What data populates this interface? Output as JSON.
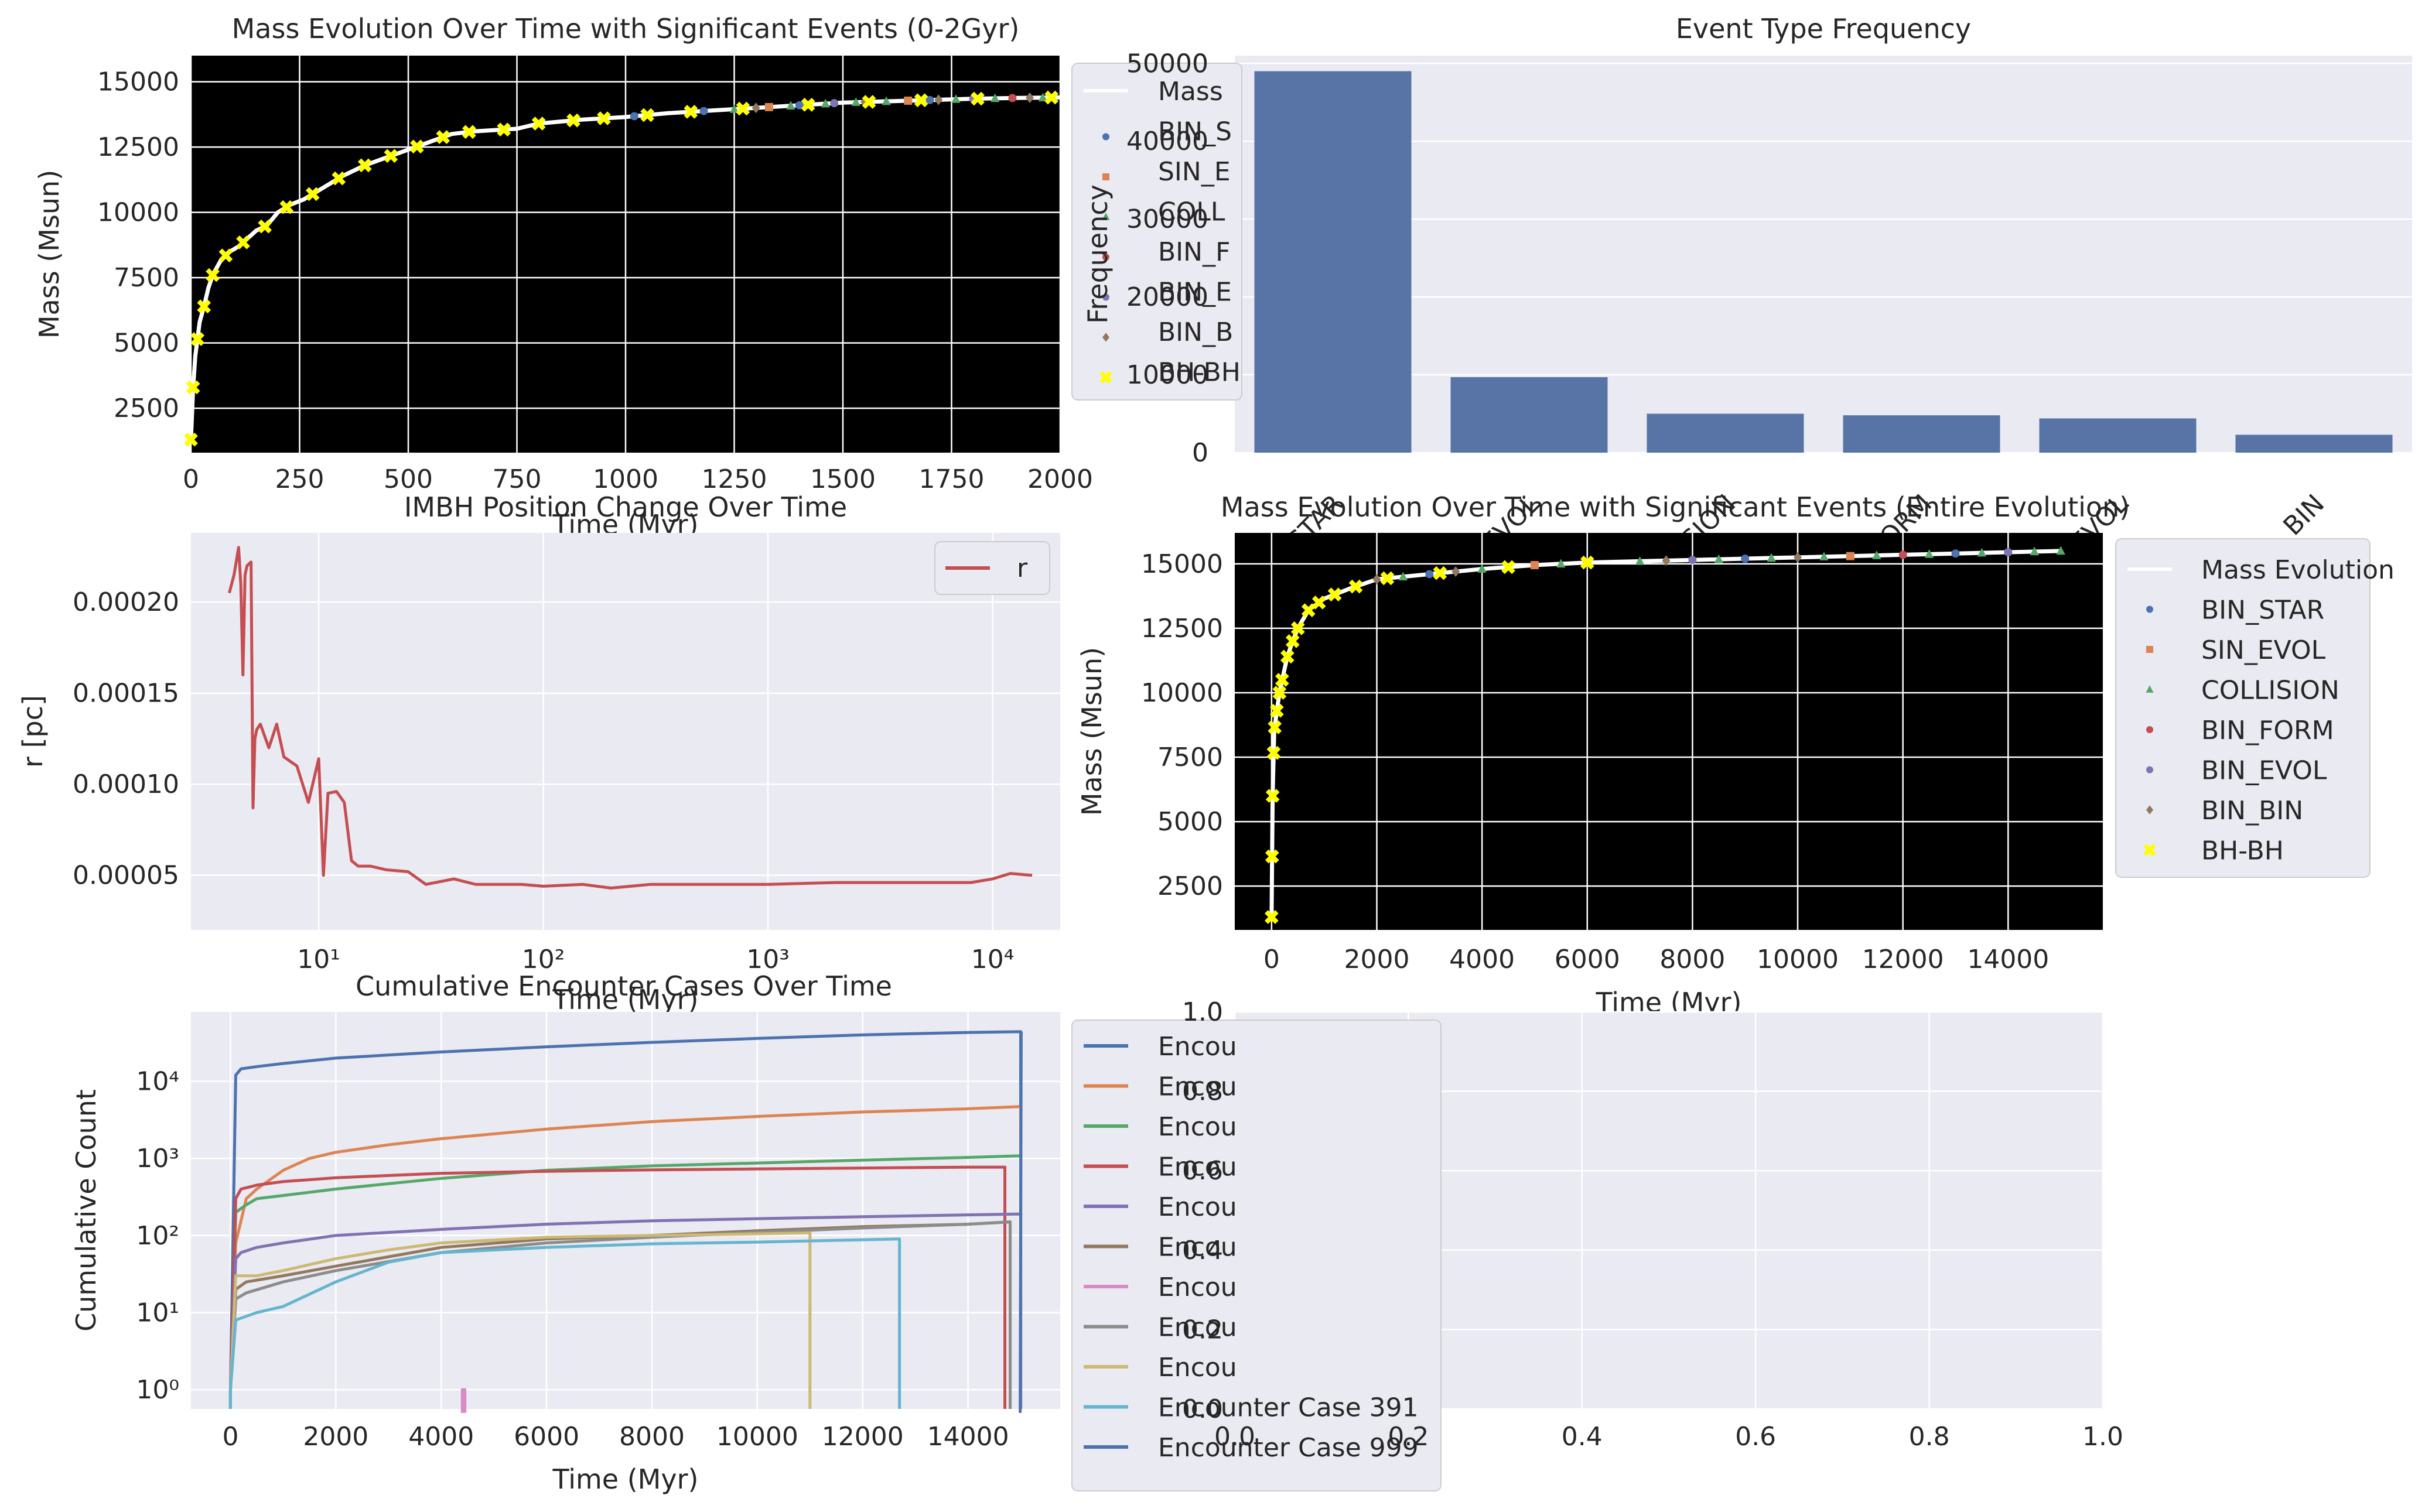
{
  "chart_data": [
    {
      "type": "line",
      "title": "Mass Evolution Over Time with Significant Events (0-2Gyr)",
      "xlabel": "Time (Myr)",
      "ylabel": "Mass (Msun)",
      "xlim": [
        0,
        2000
      ],
      "ylim": [
        800,
        16000
      ],
      "xticks": [
        0,
        250,
        500,
        750,
        1000,
        1250,
        1500,
        1750,
        2000
      ],
      "yticks": [
        2500,
        5000,
        7500,
        10000,
        12500,
        15000
      ],
      "background": "#000000",
      "grid": true,
      "series": [
        {
          "name": "Mass Evolution",
          "x": [
            0,
            5,
            10,
            20,
            30,
            40,
            50,
            70,
            90,
            110,
            130,
            150,
            175,
            200,
            230,
            260,
            300,
            350,
            400,
            450,
            500,
            550,
            600,
            650,
            700,
            750,
            800,
            900,
            1000,
            1100,
            1200,
            1300,
            1400,
            1500,
            1600,
            1700,
            1800,
            1900,
            2000
          ],
          "y": [
            1300,
            3300,
            4500,
            5800,
            6400,
            7100,
            7600,
            8200,
            8500,
            8700,
            9000,
            9300,
            9500,
            10000,
            10300,
            10500,
            10900,
            11400,
            11800,
            12100,
            12400,
            12700,
            13000,
            13100,
            13150,
            13200,
            13400,
            13550,
            13650,
            13800,
            13900,
            14000,
            14100,
            14200,
            14250,
            14300,
            14350,
            14380,
            14400
          ]
        }
      ],
      "event_markers": [
        {
          "name": "BIN_STAR",
          "x": [
            1020,
            1180,
            1400,
            1700
          ]
        },
        {
          "name": "SIN_EVOL",
          "x": [
            1330,
            1650
          ]
        },
        {
          "name": "COLLISION",
          "x": [
            1250,
            1380,
            1460,
            1530,
            1600,
            1760,
            1850,
            1960
          ]
        },
        {
          "name": "BIN_FORM",
          "x": [
            1420,
            1890
          ]
        },
        {
          "name": "BIN_EVOL",
          "x": [
            1480,
            1800
          ]
        },
        {
          "name": "BIN_BIN",
          "x": [
            1300,
            1550,
            1720,
            1930
          ]
        },
        {
          "name": "BH-BH",
          "x": [
            0,
            5,
            15,
            30,
            50,
            80,
            120,
            170,
            220,
            280,
            340,
            400,
            460,
            520,
            580,
            640,
            720,
            800,
            880,
            950,
            1050,
            1150,
            1270,
            1420,
            1560,
            1680,
            1810,
            1980
          ]
        }
      ],
      "legend": {
        "placement": "right",
        "entries": [
          "Mass Evolution",
          "BIN_STAR",
          "SIN_EVOL",
          "COLLISION",
          "BIN_FORM",
          "BIN_EVOL",
          "BIN_BIN",
          "BH-BH"
        ],
        "visible_labels": [
          "Mass",
          "BIN_S",
          "SIN_E",
          "COLL",
          "BIN_F",
          "BIN_E",
          "BIN_B",
          "BH-BH"
        ]
      }
    },
    {
      "type": "bar",
      "title": "Event Type Frequency",
      "xlabel": "",
      "ylabel": "Frequency",
      "ylim": [
        0,
        51000
      ],
      "yticks": [
        0,
        10000,
        20000,
        30000,
        40000,
        50000
      ],
      "categories": [
        "BIN_STAR",
        "SIN_EVOL",
        "COLLISION",
        "BIN_FORM",
        "BIN_EVOL",
        "BIN_BIN"
      ],
      "visible_tick_labels": [
        "STAR",
        "_EVOL",
        "LISION",
        "_FORM",
        "_EVOL",
        "_BIN"
      ],
      "values": [
        49000,
        9700,
        5000,
        4800,
        4400,
        2300
      ],
      "color": "#5874a6"
    },
    {
      "type": "line",
      "title": "IMBH Position Change Over Time",
      "xlabel": "Time (Myr)",
      "ylabel": "r [pc]",
      "xscale": "log",
      "xlim": [
        2.7,
        20000
      ],
      "ylim": [
        2e-05,
        0.000238
      ],
      "xticks": [
        "10¹",
        "10²",
        "10³",
        "10⁴"
      ],
      "yticks": [
        5e-05,
        0.0001,
        0.00015,
        0.0002
      ],
      "series": [
        {
          "name": "r",
          "x": [
            4.0,
            4.2,
            4.4,
            4.5,
            4.6,
            4.7,
            4.8,
            5.0,
            5.1,
            5.2,
            5.3,
            5.5,
            6.0,
            6.5,
            7.0,
            8.0,
            9.0,
            10.0,
            10.5,
            11.0,
            12.0,
            13.0,
            14.0,
            15.0,
            17.0,
            20.0,
            25.0,
            30.0,
            40.0,
            50.0,
            60.0,
            80.0,
            100.0,
            150.0,
            200.0,
            300.0,
            500.0,
            1000.0,
            2000.0,
            5000.0,
            8000.0,
            10000.0,
            12000.0,
            15000.0
          ],
          "y": [
            0.000205,
            0.000215,
            0.00023,
            0.00021,
            0.00016,
            0.000215,
            0.00022,
            0.000222,
            8.7e-05,
            0.000125,
            0.00013,
            0.000133,
            0.00012,
            0.000133,
            0.000115,
            0.00011,
            9e-05,
            0.000114,
            5e-05,
            9.5e-05,
            9.6e-05,
            9e-05,
            5.8e-05,
            5.5e-05,
            5.5e-05,
            5.3e-05,
            5.2e-05,
            4.5e-05,
            4.8e-05,
            4.5e-05,
            4.5e-05,
            4.5e-05,
            4.4e-05,
            4.5e-05,
            4.3e-05,
            4.5e-05,
            4.5e-05,
            4.5e-05,
            4.6e-05,
            4.6e-05,
            4.6e-05,
            4.8e-05,
            5.1e-05,
            5e-05
          ]
        }
      ],
      "color": "#c44e52",
      "legend": {
        "placement": "upper-right",
        "entries": [
          "r"
        ]
      }
    },
    {
      "type": "line",
      "title": "Mass Evolution Over Time with Significant Events (Entire Evolution)",
      "xlabel": "Time (Myr)",
      "ylabel": "Mass (Msun)",
      "xlim": [
        -700,
        15800
      ],
      "ylim": [
        800,
        16200
      ],
      "xticks": [
        0,
        2000,
        4000,
        6000,
        8000,
        10000,
        12000,
        14000
      ],
      "yticks": [
        2500,
        5000,
        7500,
        10000,
        12500,
        15000
      ],
      "background": "#000000",
      "grid": true,
      "series": [
        {
          "name": "Mass Evolution",
          "x": [
            0,
            20,
            50,
            100,
            150,
            200,
            300,
            400,
            500,
            700,
            1000,
            1500,
            2000,
            3000,
            4000,
            5000,
            6000,
            7000,
            8000,
            9000,
            10000,
            11000,
            12000,
            13000,
            14000,
            15000
          ],
          "y": [
            1300,
            6000,
            8500,
            9300,
            10000,
            10500,
            11400,
            12000,
            12500,
            13200,
            13650,
            14050,
            14400,
            14600,
            14800,
            14950,
            15050,
            15100,
            15150,
            15200,
            15250,
            15300,
            15350,
            15400,
            15450,
            15500
          ]
        }
      ],
      "event_markers": [
        {
          "name": "BIN_STAR",
          "x": [
            3000,
            9000,
            13000
          ]
        },
        {
          "name": "SIN_EVOL",
          "x": [
            5000,
            11000
          ]
        },
        {
          "name": "COLLISION",
          "x": [
            2500,
            4000,
            5500,
            7000,
            8500,
            9500,
            10500,
            11500,
            12500,
            13500,
            14500,
            15000
          ]
        },
        {
          "name": "BIN_FORM",
          "x": [
            6000,
            12000
          ]
        },
        {
          "name": "BIN_EVOL",
          "x": [
            8000,
            14000
          ]
        },
        {
          "name": "BIN_BIN",
          "x": [
            2000,
            3500,
            7500,
            10000
          ]
        },
        {
          "name": "BH-BH",
          "x": [
            0,
            10,
            20,
            40,
            60,
            100,
            150,
            200,
            300,
            400,
            500,
            700,
            900,
            1200,
            1600,
            2200,
            3200,
            4500,
            6000
          ]
        }
      ],
      "legend": {
        "placement": "right",
        "entries": [
          "Mass Evolution",
          "BIN_STAR",
          "SIN_EVOL",
          "COLLISION",
          "BIN_FORM",
          "BIN_EVOL",
          "BIN_BIN",
          "BH-BH"
        ]
      }
    },
    {
      "type": "line",
      "title": "Cumulative Encounter Cases Over Time",
      "xlabel": "Time (Myr)",
      "ylabel": "Cumulative Count",
      "yscale": "log",
      "xlim": [
        -750,
        15750
      ],
      "ylim_log10": [
        -0.25,
        4.9
      ],
      "xticks": [
        0,
        2000,
        4000,
        6000,
        8000,
        10000,
        12000,
        14000
      ],
      "yticks": [
        "10⁰",
        "10¹",
        "10²",
        "10³",
        "10⁴"
      ],
      "legend": {
        "placement": "right",
        "entries": [
          "Encou",
          "Encou",
          "Encou",
          "Encou",
          "Encou",
          "Encou",
          "Encou",
          "Encou",
          "Encou",
          "Encounter Case 391",
          "Encounter Case 999"
        ]
      },
      "series": [
        {
          "x": [
            0,
            100,
            200,
            500,
            1000,
            2000,
            4000,
            6000,
            8000,
            10000,
            12000,
            14000,
            15000
          ],
          "y": [
            1,
            12000,
            14500,
            15500,
            17000,
            20000,
            24000,
            28000,
            32000,
            36000,
            40000,
            43000,
            44000
          ],
          "end_drop": true
        },
        {
          "x": [
            0,
            100,
            300,
            500,
            1000,
            1500,
            2000,
            3000,
            4000,
            6000,
            8000,
            10000,
            12000,
            14000,
            15000
          ],
          "y": [
            1,
            80,
            300,
            400,
            700,
            1000,
            1200,
            1500,
            1800,
            2400,
            3000,
            3500,
            4000,
            4400,
            4700
          ],
          "end_drop": true
        },
        {
          "x": [
            0,
            100,
            300,
            500,
            1000,
            2000,
            4000,
            6000,
            8000,
            10000,
            12000,
            14000,
            15000
          ],
          "y": [
            1,
            200,
            250,
            300,
            330,
            400,
            550,
            700,
            800,
            870,
            950,
            1030,
            1080
          ],
          "end_drop": true
        },
        {
          "x": [
            0,
            100,
            200,
            500,
            1000,
            2000,
            3000,
            4000,
            6000,
            8000,
            10000,
            12000,
            14000,
            14700
          ],
          "y": [
            1,
            300,
            400,
            450,
            500,
            560,
            600,
            640,
            680,
            710,
            730,
            750,
            770,
            770
          ],
          "end_drop": true
        },
        {
          "x": [
            0,
            100,
            200,
            500,
            1000,
            2000,
            4000,
            6000,
            8000,
            10000,
            12000,
            14000,
            15000
          ],
          "y": [
            1,
            50,
            60,
            70,
            80,
            100,
            120,
            140,
            155,
            165,
            175,
            185,
            190
          ],
          "end_drop": true
        },
        {
          "x": [
            0,
            100,
            300,
            1000,
            2000,
            4000,
            6000,
            8000,
            10000,
            12000,
            14000,
            14800
          ],
          "y": [
            1,
            20,
            25,
            30,
            40,
            70,
            90,
            100,
            115,
            130,
            140,
            150
          ],
          "end_drop": true
        },
        {
          "x": [
            4400,
            4400,
            4450,
            4450
          ],
          "y": [
            0.5,
            1,
            1,
            0.5
          ],
          "end_drop": false
        },
        {
          "x": [
            0,
            100,
            300,
            1000,
            2000,
            4000,
            6000,
            8000,
            10000,
            12000,
            14000,
            14800
          ],
          "y": [
            1,
            15,
            18,
            25,
            35,
            60,
            80,
            95,
            110,
            125,
            140,
            150
          ],
          "end_drop": true
        },
        {
          "x": [
            0,
            100,
            500,
            1000,
            2000,
            3000,
            4000,
            6000,
            8000,
            10000,
            11000
          ],
          "y": [
            1,
            30,
            30,
            35,
            50,
            65,
            80,
            95,
            100,
            105,
            108
          ],
          "end_drop": true
        },
        {
          "name": "Encounter Case 391",
          "x": [
            0,
            100,
            500,
            1000,
            2000,
            3000,
            4000,
            6000,
            8000,
            10000,
            12000,
            12700
          ],
          "y": [
            1,
            8,
            10,
            12,
            25,
            45,
            60,
            70,
            78,
            82,
            88,
            90
          ],
          "end_drop": true
        },
        {
          "name": "Encounter Case 999",
          "x": [
            14990,
            15010
          ],
          "y": [
            0.5,
            44000
          ],
          "end_drop": false
        }
      ]
    },
    {
      "type": "line",
      "title": "",
      "xlim": [
        0,
        1
      ],
      "ylim": [
        0,
        1
      ],
      "xticks": [
        0.0,
        0.2,
        0.4,
        0.6,
        0.8,
        1.0
      ],
      "yticks": [
        0.0,
        0.2,
        0.4,
        0.6,
        0.8,
        1.0
      ],
      "series": []
    }
  ],
  "colors": {
    "axes_bg": "#eaeaf2",
    "grid": "#ffffff",
    "text": "#262626",
    "palette": [
      "#4c72b0",
      "#dd8452",
      "#55a868",
      "#c44e52",
      "#8172b3",
      "#937860",
      "#da8bc3",
      "#8c8c8c",
      "#ccb974",
      "#64b5cd"
    ],
    "event_colors": {
      "BIN_STAR": "#4c72b0",
      "SIN_EVOL": "#dd8452",
      "COLLISION": "#55a868",
      "BIN_FORM": "#c44e52",
      "BIN_EVOL": "#8172b3",
      "BIN_BIN": "#937860",
      "BH-BH": "#ffff00"
    },
    "event_shapes": {
      "BIN_STAR": "circle",
      "SIN_EVOL": "square",
      "COLLISION": "triangle",
      "BIN_FORM": "circle",
      "BIN_EVOL": "circle",
      "BIN_BIN": "diamond",
      "BH-BH": "x"
    },
    "mass_line": "#ffffff"
  }
}
